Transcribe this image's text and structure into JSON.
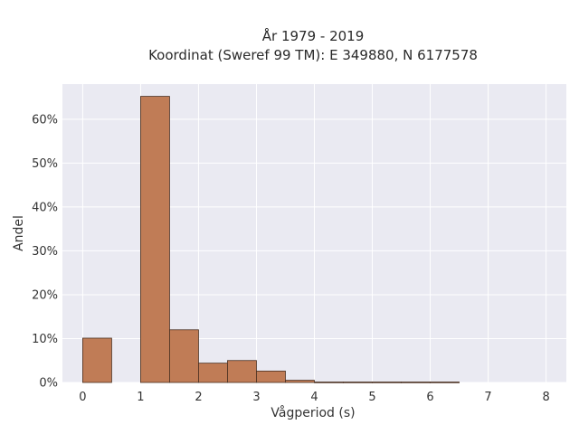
{
  "chart_data": {
    "type": "bar",
    "title_lines": [
      "År 1979 - 2019",
      "Koordinat (Sweref 99 TM): E 349880, N 6177578"
    ],
    "xlabel": "Vågperiod (s)",
    "ylabel": "Andel",
    "xlim": [
      -0.35,
      8.35
    ],
    "ylim": [
      0,
      0.68
    ],
    "x_ticks": [
      0,
      1,
      2,
      3,
      4,
      5,
      6,
      7,
      8
    ],
    "x_tick_labels": [
      "0",
      "1",
      "2",
      "3",
      "4",
      "5",
      "6",
      "7",
      "8"
    ],
    "y_ticks": [
      0,
      0.1,
      0.2,
      0.3,
      0.4,
      0.5,
      0.6
    ],
    "y_tick_labels": [
      "0%",
      "10%",
      "20%",
      "30%",
      "40%",
      "50%",
      "60%"
    ],
    "bin_width": 0.5,
    "bins": [
      {
        "start": 0.0,
        "value": 0.101
      },
      {
        "start": 0.5,
        "value": 0.0
      },
      {
        "start": 1.0,
        "value": 0.652
      },
      {
        "start": 1.5,
        "value": 0.12
      },
      {
        "start": 2.0,
        "value": 0.044
      },
      {
        "start": 2.5,
        "value": 0.05
      },
      {
        "start": 3.0,
        "value": 0.026
      },
      {
        "start": 3.5,
        "value": 0.005
      },
      {
        "start": 4.0,
        "value": 0.001
      },
      {
        "start": 4.5,
        "value": 0.001
      },
      {
        "start": 5.0,
        "value": 0.001
      },
      {
        "start": 5.5,
        "value": 0.001
      },
      {
        "start": 6.0,
        "value": 0.001
      }
    ],
    "grid": true,
    "colors": {
      "bar_fill": "#c07c56",
      "bar_stroke": "#4a2f20",
      "plot_bg": "#eaeaf2",
      "grid": "#ffffff"
    }
  }
}
